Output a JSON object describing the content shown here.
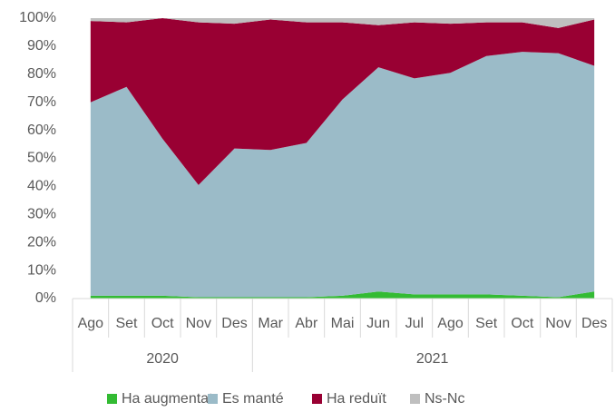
{
  "chart_data": {
    "type": "stacked-area",
    "categories": [
      "Ago",
      "Set",
      "Oct",
      "Nov",
      "Des",
      "Mar",
      "Abr",
      "Mai",
      "Jun",
      "Jul",
      "Ago",
      "Set",
      "Oct",
      "Nov",
      "Des"
    ],
    "year_groups": [
      {
        "label": "2020",
        "span": 5
      },
      {
        "label": "2021",
        "span": 10
      }
    ],
    "series": [
      {
        "name": "Ha augmentat",
        "color": "#33bb33",
        "values": [
          1,
          1,
          1,
          0.5,
          0.5,
          0.5,
          0.5,
          1,
          2.5,
          1.5,
          1.5,
          1.5,
          1,
          0.5,
          2.5
        ]
      },
      {
        "name": "Es manté",
        "color": "#9bbbc8",
        "values": [
          69,
          74.5,
          56,
          40,
          53,
          52.5,
          55,
          70,
          80,
          77,
          79,
          85,
          87,
          87,
          80.5
        ]
      },
      {
        "name": "Ha reduït",
        "color": "#990033",
        "values": [
          29,
          23,
          43,
          58,
          44.5,
          46.5,
          43,
          27.5,
          15,
          20,
          17.5,
          12,
          10.5,
          9,
          16.5
        ]
      },
      {
        "name": "Ns-Nc",
        "color": "#bfbfbf",
        "values": [
          1,
          1.5,
          0,
          1.5,
          2,
          0.5,
          1.5,
          1.5,
          2.5,
          1.5,
          2,
          1.5,
          1.5,
          3.5,
          0.5
        ]
      }
    ],
    "ylim": [
      0,
      100
    ],
    "yticks": [
      {
        "value": 0,
        "label": "0%"
      },
      {
        "value": 10,
        "label": "10%"
      },
      {
        "value": 20,
        "label": "20%"
      },
      {
        "value": 30,
        "label": "30%"
      },
      {
        "value": 40,
        "label": "40%"
      },
      {
        "value": 50,
        "label": "50%"
      },
      {
        "value": 60,
        "label": "60%"
      },
      {
        "value": 70,
        "label": "70%"
      },
      {
        "value": 80,
        "label": "80%"
      },
      {
        "value": 90,
        "label": "90%"
      },
      {
        "value": 100,
        "label": "100%"
      }
    ],
    "legend": "bottom"
  }
}
